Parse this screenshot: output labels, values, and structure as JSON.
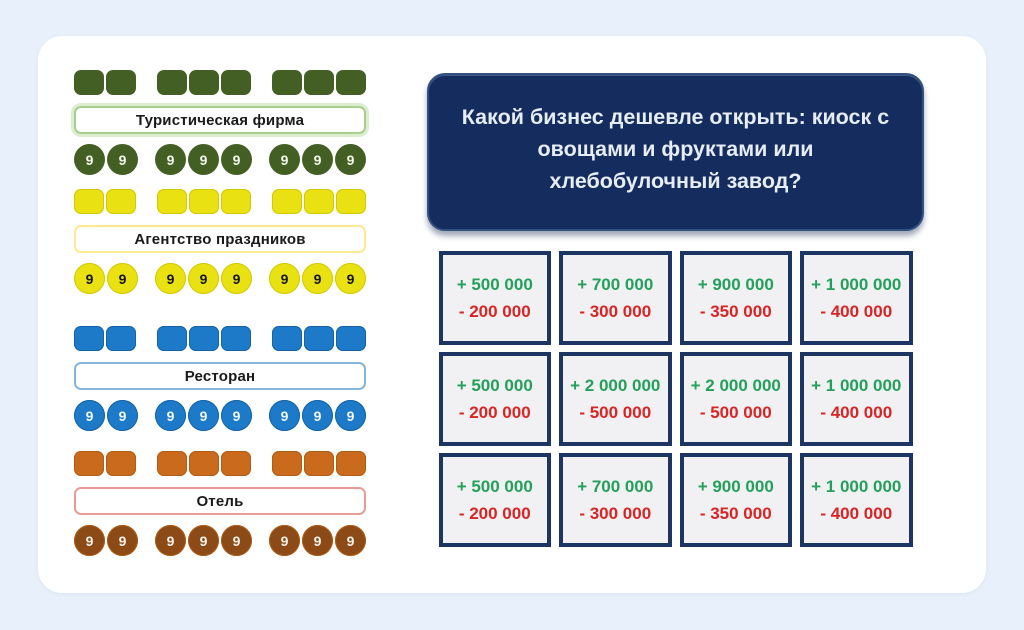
{
  "page": {
    "background": "#e8f0fb",
    "panel_background": "#ffffff"
  },
  "question": {
    "text": "Какой бизнес дешевле открыть: киоск с овощами и фруктами или хлебобулочный завод?",
    "background": "#152c5e",
    "border_color": "#31517f",
    "text_color": "#e6edf7"
  },
  "businesses": [
    {
      "id": "tourist-firm",
      "label": "Туристическая фирма",
      "groups": [
        2,
        3,
        3
      ],
      "coin_digit": "9",
      "tile_color": "#445f24",
      "coin_color": "#445f24",
      "digit_color": "#f3f6ec",
      "label_border_color": "#a5cf8d",
      "label_glow": true
    },
    {
      "id": "holiday-agency",
      "label": "Агентство праздников",
      "groups": [
        2,
        3,
        3
      ],
      "coin_digit": "9",
      "tile_color": "#eae112",
      "tile_edge_color": "#d3c906",
      "coin_color": "#eae112",
      "digit_color": "#141414",
      "label_border_color": "#ffe88f",
      "label_glow": false
    },
    {
      "id": "restaurant",
      "label": "Ресторан",
      "groups": [
        2,
        3,
        3
      ],
      "coin_digit": "9",
      "tile_color": "#1d7ac9",
      "tile_edge_color": "#1563a8",
      "coin_color": "#1d7ac9",
      "digit_color": "#f2f7fc",
      "label_border_color": "#85b6e0",
      "label_glow": false
    },
    {
      "id": "hotel",
      "label": "Отель",
      "groups": [
        2,
        3,
        3
      ],
      "coin_digit": "9",
      "tile_color": "#c96a1c",
      "tile_edge_color": "#b35c13",
      "coin_color": "#8c4a17",
      "digit_color": "#f8f2ec",
      "label_border_color": "#ea9b93",
      "label_glow": false
    }
  ],
  "answer_cards": [
    {
      "gain": "+ 500 000",
      "cost": "- 200 000"
    },
    {
      "gain": "+ 700 000",
      "cost": "- 300 000"
    },
    {
      "gain": "+ 900 000",
      "cost": "- 350 000"
    },
    {
      "gain": "+ 1 000 000",
      "cost": "- 400 000"
    },
    {
      "gain": "+ 500 000",
      "cost": "- 200 000"
    },
    {
      "gain": "+ 2 000 000",
      "cost": "- 500 000"
    },
    {
      "gain": "+ 2 000 000",
      "cost": "- 500 000"
    },
    {
      "gain": "+ 1 000 000",
      "cost": "- 400 000"
    },
    {
      "gain": "+ 500 000",
      "cost": "- 200 000"
    },
    {
      "gain": "+ 700 000",
      "cost": "- 300 000"
    },
    {
      "gain": "+ 900 000",
      "cost": "- 350 000"
    },
    {
      "gain": "+ 1 000 000",
      "cost": "- 400 000"
    }
  ],
  "colors": {
    "answer_card_background": "#f1f1f4",
    "answer_card_border": "#1c3563",
    "gain_text": "#23a05a",
    "cost_text": "#da2424"
  }
}
